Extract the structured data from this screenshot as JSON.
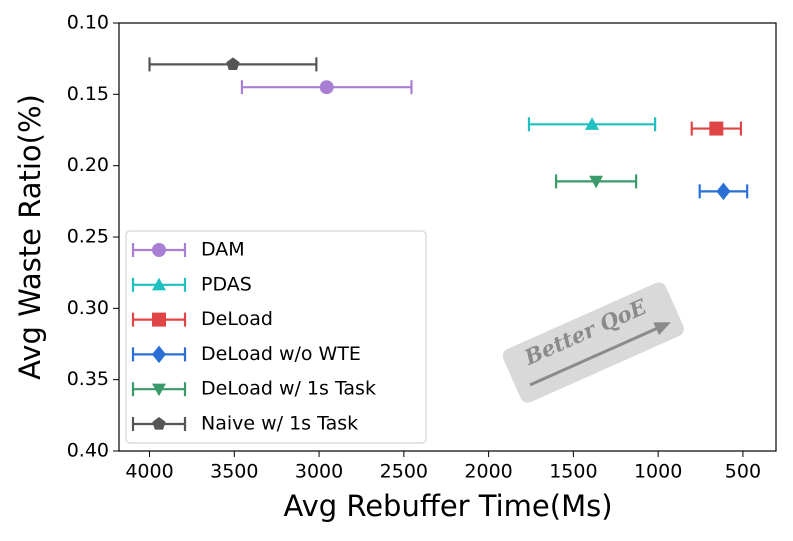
{
  "chart_data": {
    "type": "errorbar-scatter",
    "x_label": "Avg Rebuffer Time(Ms)",
    "y_label": "Avg Waste Ratio(%)",
    "xlim": [
      4180,
      305
    ],
    "ylim": [
      0.1,
      0.4
    ],
    "xticks": [
      4000,
      3500,
      3000,
      2500,
      2000,
      1500,
      1000,
      500
    ],
    "yticks": [
      {
        "value": 0.1,
        "label": "0.10"
      },
      0.15,
      {
        "value": 0.2,
        "label": "0.20"
      },
      0.25,
      {
        "value": 0.3,
        "label": "0.30"
      },
      0.35,
      {
        "value": 0.4,
        "label": "0.40"
      }
    ],
    "legend": "lower left",
    "annotation": "Better QoE",
    "series": [
      {
        "name": "DAM",
        "color": "#a97fd3",
        "marker": "circle",
        "x": [
          2955
        ],
        "y": [
          0.145
        ],
        "xerr": [
          500
        ]
      },
      {
        "name": "PDAS",
        "color": "#1fc0c0",
        "marker": "triangle-up",
        "x": [
          1390
        ],
        "y": [
          0.171
        ],
        "xerr": [
          372
        ]
      },
      {
        "name": "DeLoad",
        "color": "#e04444",
        "marker": "square",
        "x": [
          657
        ],
        "y": [
          0.174
        ],
        "xerr": [
          145
        ]
      },
      {
        "name": "DeLoad w/o WTE",
        "color": "#2a6fd6",
        "marker": "diamond",
        "x": [
          615
        ],
        "y": [
          0.218
        ],
        "xerr": [
          140
        ]
      },
      {
        "name": "DeLoad w/ 1s Task",
        "color": "#3a9a6a",
        "marker": "triangle-down",
        "x": [
          1366
        ],
        "y": [
          0.211
        ],
        "xerr": [
          236
        ]
      },
      {
        "name": "Naive w/ 1s Task",
        "color": "#555555",
        "marker": "pentagon",
        "x": [
          3508
        ],
        "y": [
          0.129
        ],
        "xerr": [
          492
        ]
      }
    ]
  }
}
